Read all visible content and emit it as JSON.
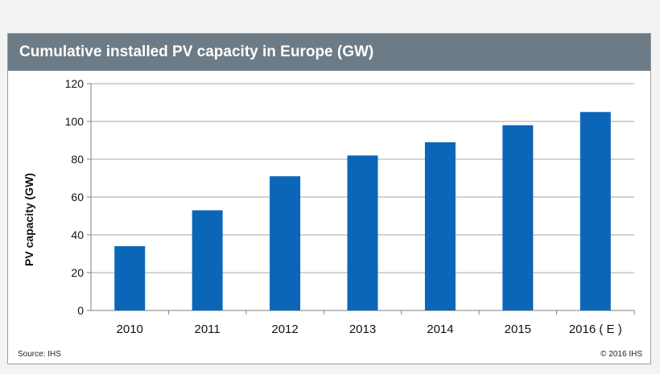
{
  "chart_data": {
    "type": "bar",
    "title": "Cumulative installed PV capacity in Europe (GW)",
    "ylabel": "PV capacity (GW)",
    "xlabel": "",
    "categories": [
      "2010",
      "2011",
      "2012",
      "2013",
      "2014",
      "2015",
      "2016 ( E )"
    ],
    "values": [
      34,
      53,
      71,
      82,
      89,
      98,
      105
    ],
    "ylim": [
      0,
      120
    ],
    "yticks": [
      0,
      20,
      40,
      60,
      80,
      100,
      120
    ],
    "grid": true,
    "legend": "none",
    "bar_color": "#0b66b8"
  },
  "footer": {
    "source": "Source: IHS",
    "copyright": "© 2016 IHS"
  }
}
